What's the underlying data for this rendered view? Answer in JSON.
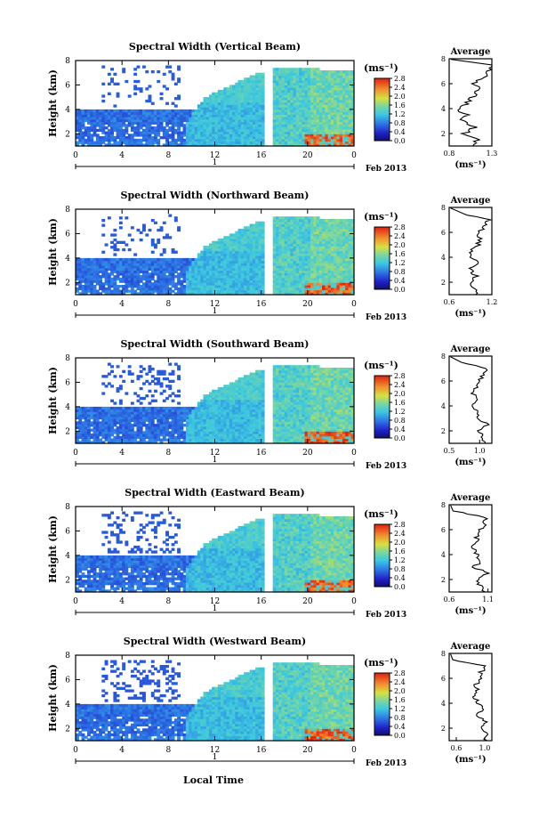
{
  "figure": {
    "xlabel": "Local Time",
    "ylabel": "Height (km)",
    "x_ticks": [
      "0",
      "4",
      "8",
      "12",
      "16",
      "20",
      "0"
    ],
    "y_ticks": [
      "2",
      "4",
      "6",
      "8"
    ],
    "date_label": "1",
    "month_label": "Feb 2013",
    "colorbar_unit": "(ms⁻¹)",
    "colorbar_ticks": [
      "0.0",
      "0.4",
      "0.8",
      "1.2",
      "1.6",
      "2.0",
      "2.4",
      "2.8"
    ],
    "avg_title": "Average",
    "avg_unit": "(ms⁻¹)",
    "colors": {
      "jet_low": "#1a1aa0",
      "jet_mid": "#3cc8d8",
      "jet_high": "#e02010"
    }
  },
  "chart_data": [
    {
      "type": "heatmap",
      "title": "Spectral Width (Vertical Beam)",
      "x_range": [
        0,
        24
      ],
      "y_range": [
        1,
        8
      ],
      "z_range": [
        0.0,
        2.8
      ],
      "avg_ticks": [
        "0.8",
        "1.3"
      ],
      "avg_xlim": [
        0.8,
        1.3
      ],
      "avg_profile": {
        "heights": [
          1.0,
          1.5,
          2.0,
          2.5,
          3.0,
          3.5,
          4.0,
          4.5,
          5.0,
          5.5,
          6.0,
          6.5,
          7.0,
          7.5
        ],
        "values": [
          1.05,
          1.12,
          0.98,
          1.1,
          0.95,
          1.0,
          0.9,
          1.02,
          1.08,
          1.15,
          1.1,
          1.2,
          1.25,
          1.3
        ]
      }
    },
    {
      "type": "heatmap",
      "title": "Spectral Width (Northward Beam)",
      "x_range": [
        0,
        24
      ],
      "y_range": [
        1,
        8
      ],
      "z_range": [
        0.0,
        2.8
      ],
      "avg_ticks": [
        "0.6",
        "1.2"
      ],
      "avg_xlim": [
        0.6,
        1.2
      ],
      "avg_profile": {
        "heights": [
          1.0,
          1.5,
          2.0,
          2.5,
          3.0,
          3.5,
          4.0,
          4.5,
          5.0,
          5.5,
          6.0,
          6.5,
          7.0,
          7.5
        ],
        "values": [
          1.0,
          0.95,
          0.9,
          0.98,
          0.88,
          1.02,
          0.92,
          0.9,
          1.0,
          1.05,
          1.0,
          1.1,
          1.15,
          0.8
        ]
      }
    },
    {
      "type": "heatmap",
      "title": "Spectral Width (Southward Beam)",
      "x_range": [
        0,
        24
      ],
      "y_range": [
        1,
        8
      ],
      "z_range": [
        0.0,
        2.8
      ],
      "avg_ticks": [
        "0.5",
        "1.0"
      ],
      "avg_xlim": [
        0.5,
        1.2
      ],
      "avg_profile": {
        "heights": [
          1.0,
          1.5,
          2.0,
          2.5,
          3.0,
          3.5,
          4.0,
          4.5,
          5.0,
          5.5,
          6.0,
          6.5,
          7.0,
          7.5
        ],
        "values": [
          1.1,
          1.05,
          0.98,
          1.12,
          1.0,
          0.95,
          0.88,
          0.95,
          0.9,
          0.95,
          1.0,
          1.05,
          1.1,
          0.7
        ]
      }
    },
    {
      "type": "heatmap",
      "title": "Spectral Width (Eastward Beam)",
      "x_range": [
        0,
        24
      ],
      "y_range": [
        1,
        8
      ],
      "z_range": [
        0.0,
        2.8
      ],
      "avg_ticks": [
        "0.6",
        "1.1"
      ],
      "avg_xlim": [
        0.6,
        1.15
      ],
      "avg_profile": {
        "heights": [
          1.0,
          1.5,
          2.0,
          2.5,
          3.0,
          3.5,
          4.0,
          4.5,
          5.0,
          5.5,
          6.0,
          6.5,
          7.0,
          7.5
        ],
        "values": [
          1.05,
          1.0,
          0.95,
          1.08,
          0.92,
          1.02,
          0.96,
          0.9,
          0.98,
          0.95,
          1.0,
          1.05,
          1.08,
          0.65
        ]
      }
    },
    {
      "type": "heatmap",
      "title": "Spectral Width (Westward Beam)",
      "x_range": [
        0,
        24
      ],
      "y_range": [
        1,
        8
      ],
      "z_range": [
        0.0,
        2.8
      ],
      "avg_ticks": [
        "0.6",
        "1.0"
      ],
      "avg_xlim": [
        0.5,
        1.1
      ],
      "avg_profile": {
        "heights": [
          1.0,
          1.5,
          2.0,
          2.5,
          3.0,
          3.5,
          4.0,
          4.5,
          5.0,
          5.5,
          6.0,
          6.5,
          7.0,
          7.5
        ],
        "values": [
          1.0,
          1.05,
          0.95,
          1.0,
          0.9,
          0.98,
          0.92,
          0.85,
          0.9,
          0.88,
          0.92,
          0.95,
          1.0,
          0.55
        ]
      }
    }
  ]
}
